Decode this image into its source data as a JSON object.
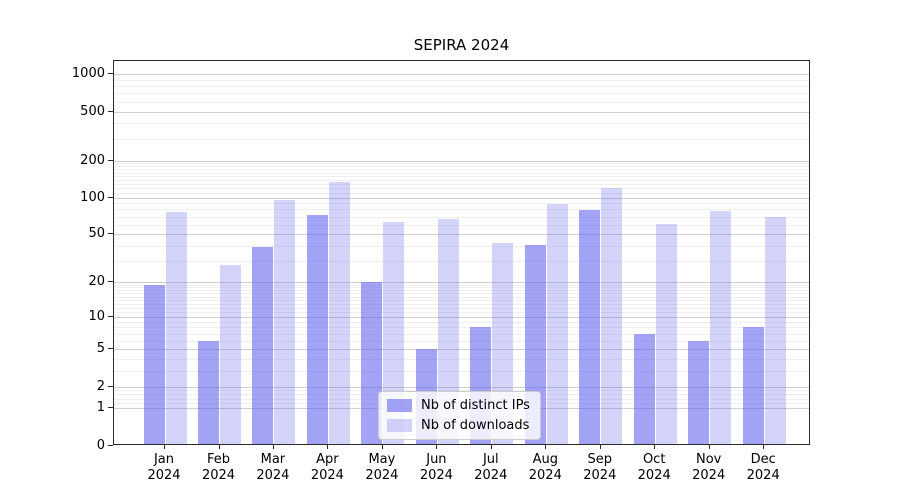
{
  "chart_data": {
    "type": "bar",
    "title": "SEPIRA 2024",
    "categories": [
      "Jan 2024",
      "Feb 2024",
      "Mar 2024",
      "Apr 2024",
      "May 2024",
      "Jun 2024",
      "Jul 2024",
      "Aug 2024",
      "Sep 2024",
      "Oct 2024",
      "Nov 2024",
      "Dec 2024"
    ],
    "series": [
      {
        "name": "Nb of distinct IPs",
        "color": "rgba(102,102,238,0.60)",
        "values": [
          19,
          6,
          39,
          72,
          20,
          5,
          8,
          41,
          79,
          7,
          6,
          8
        ]
      },
      {
        "name": "Nb of downloads",
        "color": "rgba(102,102,238,0.28)",
        "values": [
          76,
          28,
          95,
          135,
          63,
          67,
          42,
          88,
          120,
          61,
          78,
          69
        ]
      }
    ],
    "yscale": "log1p",
    "ylim": [
      0,
      1280
    ],
    "yticks": [
      0,
      1,
      2,
      5,
      10,
      20,
      50,
      100,
      200,
      500,
      1000
    ],
    "yticks_minor": [
      1.2,
      1.4,
      1.6,
      1.8,
      3,
      4,
      6,
      7,
      8,
      9,
      11,
      12,
      13,
      14,
      15,
      16,
      17,
      18,
      19,
      30,
      40,
      60,
      70,
      80,
      90,
      110,
      120,
      130,
      140,
      150,
      160,
      170,
      180,
      190,
      300,
      400,
      600,
      700,
      800,
      900
    ],
    "xlabel": "",
    "ylabel": "",
    "grid": true,
    "legend_position": "lower center"
  },
  "colors": {
    "bar_base": "#6666ee",
    "spine": "#2b2b2b",
    "grid_major": "#cfcfcf",
    "grid_minor": "#efefef",
    "background": "#ffffff"
  }
}
